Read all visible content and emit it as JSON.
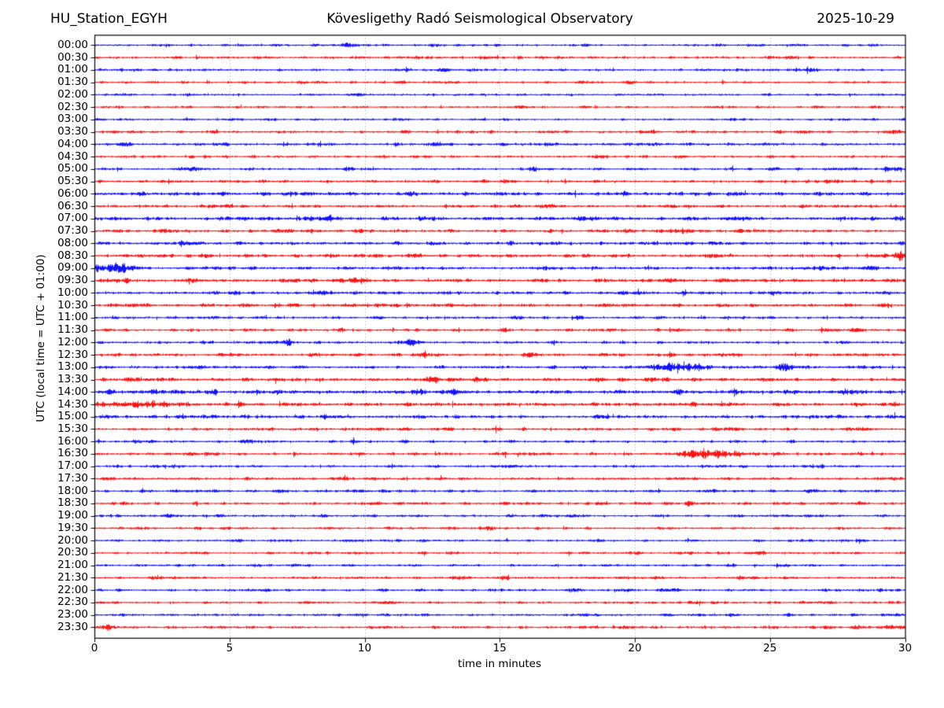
{
  "header": {
    "station": "HU_Station_EGYH",
    "observatory": "Kövesligethy Radó Seismological Observatory",
    "date": "2025-10-29"
  },
  "axes": {
    "xlabel": "time in minutes",
    "ylabel": "UTC (local time = UTC + 01:00)",
    "x_ticks": [
      0,
      5,
      10,
      15,
      20,
      25,
      30
    ],
    "x_range": [
      0,
      30
    ],
    "grid_minutes": [
      5,
      10,
      15,
      20,
      25
    ]
  },
  "colors": {
    "blue": "#0000ff",
    "red": "#ff0000",
    "grid": "#999999",
    "frame": "#000000",
    "background": "#ffffff"
  },
  "chart_data": {
    "type": "line",
    "subtype": "helicorder-day-plot",
    "title": "Kövesligethy Radó Seismological Observatory",
    "station": "HU_Station_EGYH",
    "date": "2025-10-29",
    "minutes_per_row": 30,
    "xlabel": "time in minutes",
    "ylabel": "UTC (local time = UTC + 01:00)",
    "grid": "vertical-dotted-every-5-min",
    "rows": [
      {
        "label": "00:00",
        "color": "blue",
        "base_amp": 1.7,
        "events": []
      },
      {
        "label": "00:30",
        "color": "red",
        "base_amp": 2.0,
        "events": []
      },
      {
        "label": "01:00",
        "color": "blue",
        "base_amp": 1.9,
        "events": [
          {
            "min": 26.0,
            "amp": 1.5,
            "w": 0.3
          }
        ]
      },
      {
        "label": "01:30",
        "color": "red",
        "base_amp": 1.7,
        "events": []
      },
      {
        "label": "02:00",
        "color": "blue",
        "base_amp": 1.6,
        "events": [
          {
            "min": 3.5,
            "amp": 1.3,
            "w": 0.3
          }
        ]
      },
      {
        "label": "02:30",
        "color": "red",
        "base_amp": 1.7,
        "events": []
      },
      {
        "label": "03:00",
        "color": "blue",
        "base_amp": 1.6,
        "events": []
      },
      {
        "label": "03:30",
        "color": "red",
        "base_amp": 2.0,
        "events": []
      },
      {
        "label": "04:00",
        "color": "blue",
        "base_amp": 2.2,
        "events": []
      },
      {
        "label": "04:30",
        "color": "red",
        "base_amp": 1.9,
        "events": []
      },
      {
        "label": "05:00",
        "color": "blue",
        "base_amp": 1.8,
        "events": [
          {
            "min": 16.2,
            "amp": 2.2,
            "w": 0.3
          },
          {
            "min": 29.5,
            "amp": 4.0,
            "w": 0.3
          }
        ]
      },
      {
        "label": "05:30",
        "color": "red",
        "base_amp": 2.0,
        "events": [
          {
            "min": 28.7,
            "amp": 2.8,
            "w": 0.12
          }
        ]
      },
      {
        "label": "06:00",
        "color": "blue",
        "base_amp": 2.6,
        "events": []
      },
      {
        "label": "06:30",
        "color": "red",
        "base_amp": 2.2,
        "events": []
      },
      {
        "label": "07:00",
        "color": "blue",
        "base_amp": 2.6,
        "events": [
          {
            "min": 8.5,
            "amp": 3.2,
            "w": 0.5
          },
          {
            "min": 12.4,
            "amp": 1.5,
            "w": 0.4
          }
        ]
      },
      {
        "label": "07:30",
        "color": "red",
        "base_amp": 2.2,
        "events": [
          {
            "min": 21.7,
            "amp": 2.2,
            "w": 0.7
          }
        ]
      },
      {
        "label": "08:00",
        "color": "blue",
        "base_amp": 2.4,
        "events": [
          {
            "min": 3.4,
            "amp": 2.2,
            "w": 0.4
          }
        ]
      },
      {
        "label": "08:30",
        "color": "red",
        "base_amp": 2.4,
        "events": [
          {
            "min": 29.8,
            "amp": 5.0,
            "w": 0.35
          }
        ]
      },
      {
        "label": "09:00",
        "color": "blue",
        "base_amp": 2.2,
        "events": [
          {
            "min": 0.4,
            "amp": 5.0,
            "w": 0.8
          },
          {
            "min": 16.5,
            "amp": 1.8,
            "w": 0.4
          },
          {
            "min": 27.0,
            "amp": 1.5,
            "w": 0.8
          }
        ]
      },
      {
        "label": "09:30",
        "color": "red",
        "base_amp": 2.4,
        "events": [
          {
            "min": 0.8,
            "amp": 2.0,
            "w": 0.5
          }
        ]
      },
      {
        "label": "10:00",
        "color": "blue",
        "base_amp": 2.4,
        "events": []
      },
      {
        "label": "10:30",
        "color": "red",
        "base_amp": 2.4,
        "events": [
          {
            "min": 0.8,
            "amp": 2.5,
            "w": 0.3
          }
        ]
      },
      {
        "label": "11:00",
        "color": "blue",
        "base_amp": 2.0,
        "events": []
      },
      {
        "label": "11:30",
        "color": "red",
        "base_amp": 2.0,
        "events": [
          {
            "min": 5.8,
            "amp": 3.2,
            "w": 0.12
          }
        ]
      },
      {
        "label": "12:00",
        "color": "blue",
        "base_amp": 2.0,
        "events": [
          {
            "min": 6.6,
            "amp": 2.2,
            "w": 0.3
          },
          {
            "min": 7.2,
            "amp": 3.8,
            "w": 0.2
          },
          {
            "min": 11.6,
            "amp": 3.2,
            "w": 0.4
          }
        ]
      },
      {
        "label": "12:30",
        "color": "red",
        "base_amp": 2.1,
        "events": []
      },
      {
        "label": "13:00",
        "color": "blue",
        "base_amp": 2.2,
        "events": [
          {
            "min": 21.0,
            "amp": 2.2,
            "w": 0.6
          },
          {
            "min": 22.1,
            "amp": 4.5,
            "w": 0.7
          },
          {
            "min": 25.6,
            "amp": 1.8,
            "w": 0.3
          }
        ]
      },
      {
        "label": "13:30",
        "color": "red",
        "base_amp": 2.4,
        "events": [
          {
            "min": 12.4,
            "amp": 4.2,
            "w": 0.25
          },
          {
            "min": 13.0,
            "amp": 1.5,
            "w": 1.0
          }
        ]
      },
      {
        "label": "14:00",
        "color": "blue",
        "base_amp": 3.0,
        "events": []
      },
      {
        "label": "14:30",
        "color": "red",
        "base_amp": 2.6,
        "events": [
          {
            "min": 0.3,
            "amp": 2.5,
            "w": 0.3
          },
          {
            "min": 1.8,
            "amp": 4.0,
            "w": 0.9
          }
        ]
      },
      {
        "label": "15:00",
        "color": "blue",
        "base_amp": 2.4,
        "events": [
          {
            "min": 4.0,
            "amp": 1.8,
            "w": 0.3
          }
        ]
      },
      {
        "label": "15:30",
        "color": "red",
        "base_amp": 2.0,
        "events": []
      },
      {
        "label": "16:00",
        "color": "blue",
        "base_amp": 2.0,
        "events": []
      },
      {
        "label": "16:30",
        "color": "red",
        "base_amp": 2.1,
        "events": [
          {
            "min": 22.0,
            "amp": 3.5,
            "w": 0.5
          },
          {
            "min": 23.0,
            "amp": 5.0,
            "w": 0.8
          }
        ]
      },
      {
        "label": "17:00",
        "color": "blue",
        "base_amp": 1.9,
        "events": [
          {
            "min": 3.0,
            "amp": 1.8,
            "w": 0.3
          }
        ]
      },
      {
        "label": "17:30",
        "color": "red",
        "base_amp": 1.9,
        "events": []
      },
      {
        "label": "18:00",
        "color": "blue",
        "base_amp": 1.9,
        "events": []
      },
      {
        "label": "18:30",
        "color": "red",
        "base_amp": 1.9,
        "events": [
          {
            "min": 22.0,
            "amp": 2.8,
            "w": 0.12
          }
        ]
      },
      {
        "label": "19:00",
        "color": "blue",
        "base_amp": 1.9,
        "events": []
      },
      {
        "label": "19:30",
        "color": "red",
        "base_amp": 1.8,
        "events": [
          {
            "min": 14.7,
            "amp": 1.8,
            "w": 0.15
          },
          {
            "min": 27.6,
            "amp": 1.8,
            "w": 0.4
          }
        ]
      },
      {
        "label": "20:00",
        "color": "blue",
        "base_amp": 1.8,
        "events": []
      },
      {
        "label": "20:30",
        "color": "red",
        "base_amp": 1.8,
        "events": []
      },
      {
        "label": "21:00",
        "color": "blue",
        "base_amp": 1.8,
        "events": []
      },
      {
        "label": "21:30",
        "color": "red",
        "base_amp": 1.8,
        "events": []
      },
      {
        "label": "22:00",
        "color": "blue",
        "base_amp": 1.9,
        "events": []
      },
      {
        "label": "22:30",
        "color": "red",
        "base_amp": 1.8,
        "events": []
      },
      {
        "label": "23:00",
        "color": "blue",
        "base_amp": 1.9,
        "events": []
      },
      {
        "label": "23:30",
        "color": "red",
        "base_amp": 2.0,
        "events": [
          {
            "min": 0.5,
            "amp": 2.0,
            "w": 0.5
          },
          {
            "min": 18.4,
            "amp": 3.0,
            "w": 0.15
          }
        ]
      }
    ]
  }
}
